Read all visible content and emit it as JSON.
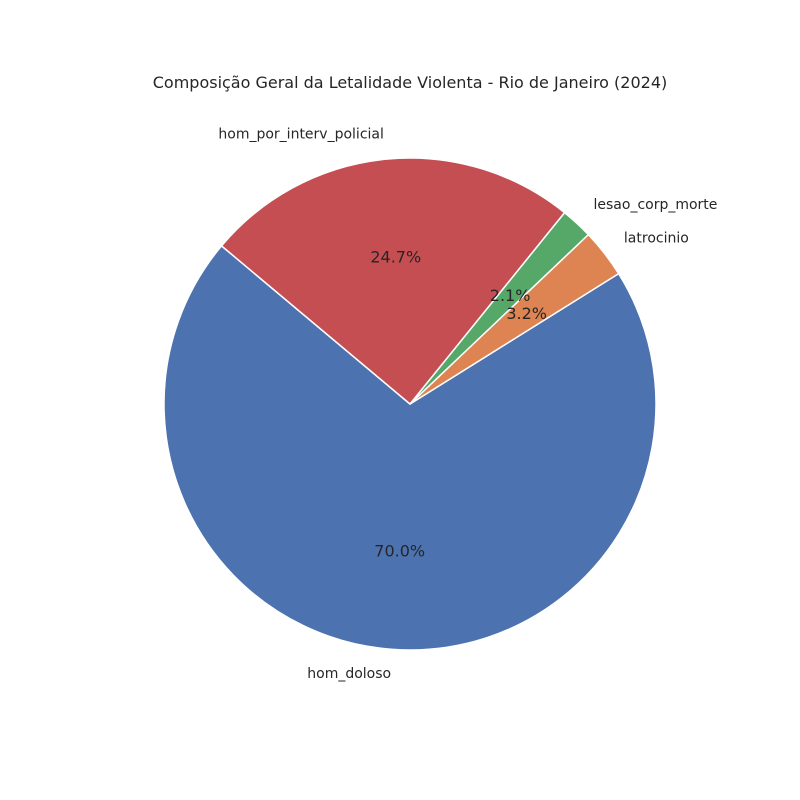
{
  "chart_data": {
    "type": "pie",
    "title": "Composição Geral da Letalidade Violenta - Rio de Janeiro (2024)",
    "start_angle_deg": 140,
    "direction": "counterclockwise",
    "slices": [
      {
        "label": "hom_doloso",
        "value": 70.0,
        "pct_text": "70.0%",
        "color": "#4c72b0"
      },
      {
        "label": "latrocinio",
        "value": 3.2,
        "pct_text": "3.2%",
        "color": "#dd8452"
      },
      {
        "label": "lesao_corp_morte",
        "value": 2.1,
        "pct_text": "2.1%",
        "color": "#55a868"
      },
      {
        "label": "hom_por_interv_policial",
        "value": 24.7,
        "pct_text": "24.7%",
        "color": "#c44e52"
      }
    ]
  }
}
